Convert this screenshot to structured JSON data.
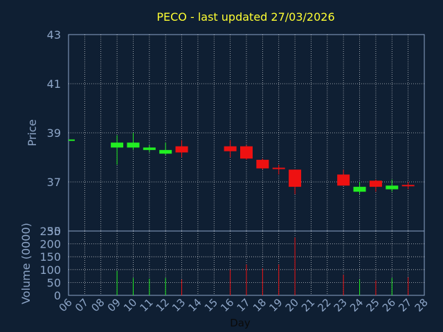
{
  "chart_data": [
    {
      "type": "candlestick",
      "title": "PECO - last updated 27/03/2026",
      "ylabel": "Price",
      "ylim": [
        35,
        43
      ],
      "yticks": [
        "43",
        "41",
        "39",
        "37",
        "35"
      ],
      "candles": [
        {
          "day": "06",
          "open": 38.7,
          "close": 38.7,
          "high": 38.7,
          "low": 38.7
        },
        {
          "day": "09",
          "open": 38.4,
          "close": 38.6,
          "high": 38.9,
          "low": 37.7
        },
        {
          "day": "10",
          "open": 38.4,
          "close": 38.6,
          "high": 39.0,
          "low": 38.3
        },
        {
          "day": "11",
          "open": 38.3,
          "close": 38.4,
          "high": 38.5,
          "low": 38.2
        },
        {
          "day": "12",
          "open": 38.15,
          "close": 38.3,
          "high": 38.6,
          "low": 38.1
        },
        {
          "day": "13",
          "open": 38.45,
          "close": 38.2,
          "high": 38.7,
          "low": 38.0
        },
        {
          "day": "16",
          "open": 38.45,
          "close": 38.25,
          "high": 38.7,
          "low": 38.0
        },
        {
          "day": "17",
          "open": 38.45,
          "close": 37.95,
          "high": 38.5,
          "low": 37.9
        },
        {
          "day": "18",
          "open": 37.9,
          "close": 37.55,
          "high": 37.95,
          "low": 37.5
        },
        {
          "day": "19",
          "open": 37.55,
          "close": 37.5,
          "high": 37.7,
          "low": 37.3
        },
        {
          "day": "20",
          "open": 37.5,
          "close": 36.8,
          "high": 37.5,
          "low": 36.5
        },
        {
          "day": "23",
          "open": 37.3,
          "close": 36.85,
          "high": 37.5,
          "low": 36.85
        },
        {
          "day": "24",
          "open": 36.6,
          "close": 36.8,
          "high": 37.0,
          "low": 36.5
        },
        {
          "day": "25",
          "open": 37.05,
          "close": 36.8,
          "high": 37.1,
          "low": 36.6
        },
        {
          "day": "26",
          "open": 36.7,
          "close": 36.85,
          "high": 37.1,
          "low": 36.6
        },
        {
          "day": "27",
          "open": 36.85,
          "close": 36.8,
          "high": 37.0,
          "low": 36.7
        }
      ]
    },
    {
      "type": "bar",
      "ylabel": "Volume (0000)",
      "xlabel": "Day",
      "ylim": [
        0,
        250
      ],
      "yticks": [
        "250",
        "200",
        "150",
        "100",
        "50",
        "0"
      ],
      "categories": [
        "06",
        "07",
        "08",
        "09",
        "10",
        "11",
        "12",
        "13",
        "14",
        "15",
        "16",
        "17",
        "18",
        "19",
        "20",
        "21",
        "22",
        "23",
        "24",
        "25",
        "26",
        "27",
        "28"
      ],
      "values": [
        0,
        0,
        0,
        95,
        68,
        65,
        68,
        62,
        0,
        0,
        100,
        120,
        105,
        120,
        225,
        0,
        0,
        80,
        62,
        58,
        68,
        70,
        0
      ],
      "up": [
        true,
        true,
        true,
        true,
        true,
        true,
        true,
        false,
        true,
        true,
        false,
        false,
        false,
        false,
        false,
        true,
        true,
        false,
        true,
        false,
        true,
        false,
        true
      ]
    }
  ],
  "colors": {
    "background": "#0f1f33",
    "text": "#8ea6c8",
    "title": "#ffff33",
    "grid": "#ffffff",
    "up": "#22ee22",
    "down": "#ee1111",
    "flat": "#22ee22"
  }
}
